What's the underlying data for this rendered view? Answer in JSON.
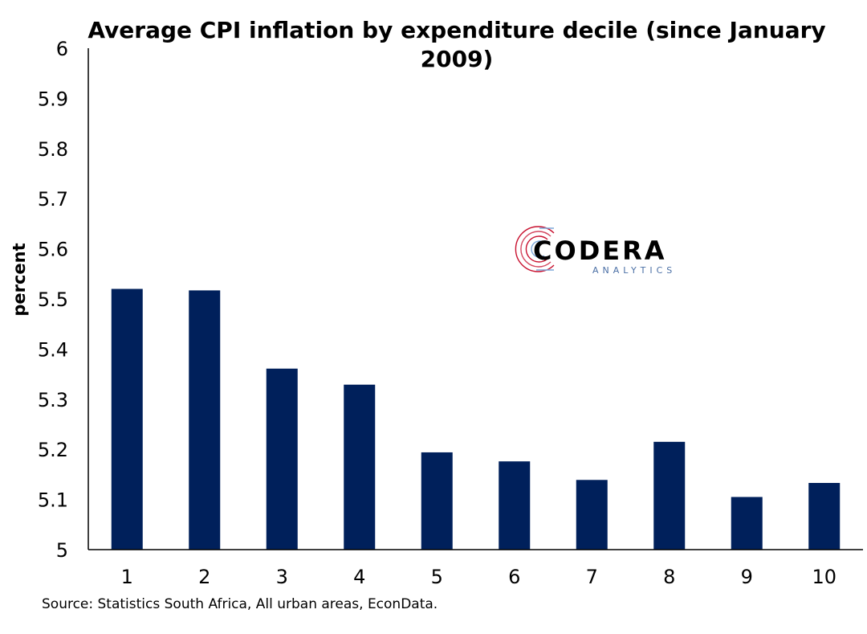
{
  "chart_data": {
    "type": "bar",
    "title_lines": [
      "Average CPI inflation by expenditure decile (since January",
      "2009)"
    ],
    "xlabel": "",
    "ylabel": "percent",
    "categories": [
      "1",
      "2",
      "3",
      "4",
      "5",
      "6",
      "7",
      "8",
      "9",
      "10"
    ],
    "values": [
      5.52,
      5.517,
      5.361,
      5.329,
      5.194,
      5.176,
      5.139,
      5.215,
      5.105,
      5.133
    ],
    "ylim": [
      5,
      6
    ],
    "yticks": [
      "5",
      "5.1",
      "5.2",
      "5.3",
      "5.4",
      "5.5",
      "5.6",
      "5.7",
      "5.8",
      "5.9",
      "6"
    ],
    "ytick_values": [
      5,
      5.1,
      5.2,
      5.3,
      5.4,
      5.5,
      5.6,
      5.7,
      5.8,
      5.9,
      6
    ],
    "grid": false,
    "legend": "none",
    "bar_color": "#00205b",
    "source": "Source: Statistics South Africa, All urban areas, EconData."
  },
  "logo": {
    "name": "CODERA",
    "sub": "ANALYTICS",
    "colors": [
      "#c8102e",
      "#7da7d9"
    ]
  }
}
